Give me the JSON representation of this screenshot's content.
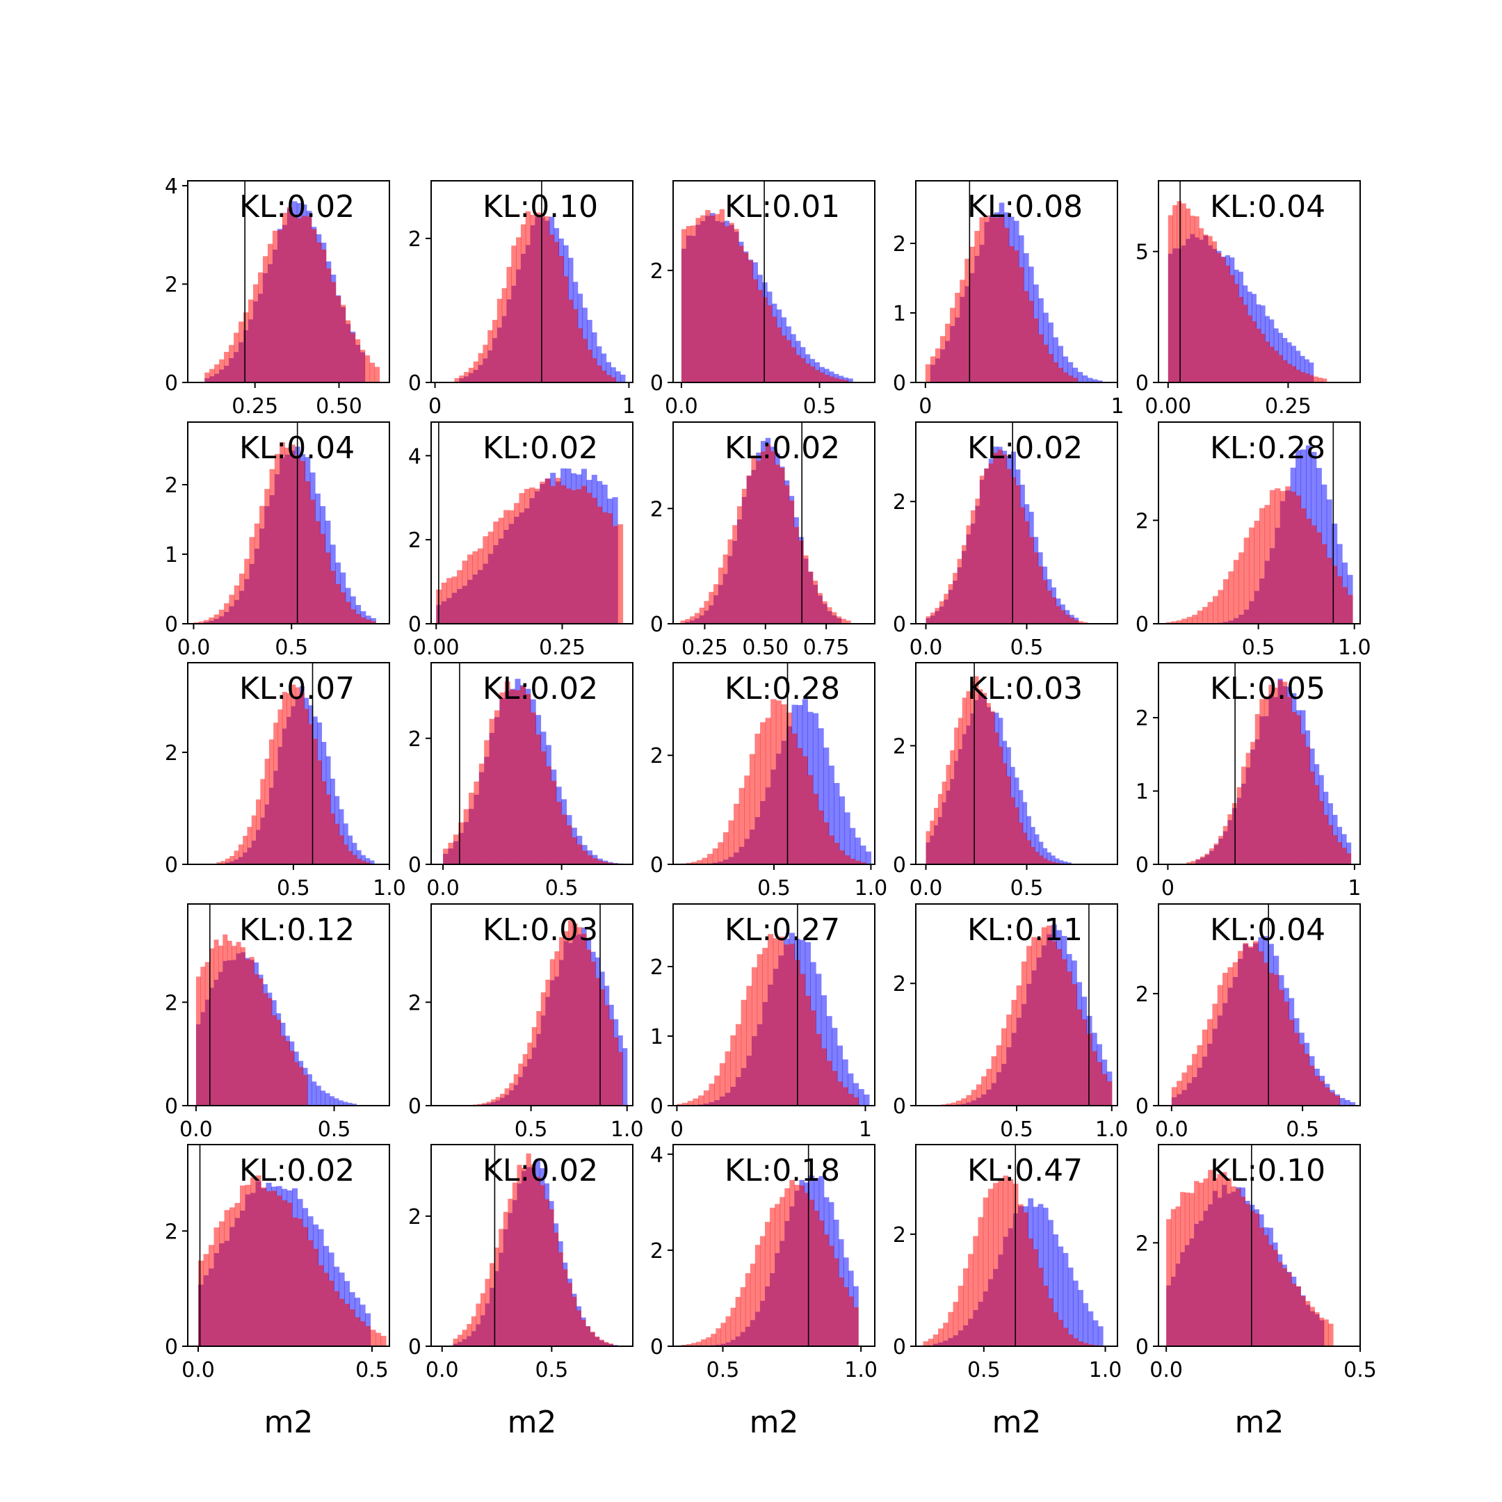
{
  "colors": {
    "blue": "#0000ff",
    "red": "#ff0000",
    "mix": "#c23b76",
    "frame": "#000000"
  },
  "chart_data": {
    "type": "histogram-grid",
    "rows": 5,
    "cols": 5,
    "xlabel": "m2",
    "grid": false,
    "panels": [
      {
        "kl": "KL:0.02",
        "xlim": [
          0.05,
          0.65
        ],
        "ylim": [
          0,
          4.1
        ],
        "xticks": [
          0.25,
          0.5
        ],
        "xticklabels": [
          "0.25",
          "0.50"
        ],
        "yticks": [
          0,
          2,
          4
        ],
        "yticklabels": [
          "0",
          "2",
          "4"
        ],
        "vline": 0.22,
        "red": {
          "mu": 0.37,
          "sd": 0.11,
          "peak": 3.5,
          "lo": 0.1,
          "hi": 0.62
        },
        "blue": {
          "mu": 0.38,
          "sd": 0.1,
          "peak": 3.6,
          "lo": 0.1,
          "hi": 0.58
        }
      },
      {
        "kl": "KL:0.10",
        "xlim": [
          -0.02,
          1.02
        ],
        "ylim": [
          0,
          2.8
        ],
        "xticks": [
          0,
          1
        ],
        "xticklabels": [
          "0",
          "1"
        ],
        "yticks": [
          0,
          2
        ],
        "yticklabels": [
          "0",
          "2"
        ],
        "vline": 0.55,
        "red": {
          "mu": 0.52,
          "sd": 0.15,
          "peak": 2.45,
          "lo": 0.1,
          "hi": 0.92
        },
        "blue": {
          "mu": 0.57,
          "sd": 0.16,
          "peak": 2.3,
          "lo": 0.12,
          "hi": 0.98
        }
      },
      {
        "kl": "KL:0.01",
        "xlim": [
          -0.03,
          0.7
        ],
        "ylim": [
          0,
          3.6
        ],
        "xticks": [
          0,
          0.5
        ],
        "xticklabels": [
          "0.0",
          "0.5"
        ],
        "yticks": [
          0,
          2
        ],
        "yticklabels": [
          "0",
          "2"
        ],
        "vline": 0.3,
        "red": {
          "mu": 0.1,
          "sd": 0.17,
          "peak": 3.1,
          "lo": 0.0,
          "hi": 0.6
        },
        "blue": {
          "mu": 0.12,
          "sd": 0.18,
          "peak": 2.95,
          "lo": 0.0,
          "hi": 0.62
        }
      },
      {
        "kl": "KL:0.08",
        "xlim": [
          -0.05,
          1.0
        ],
        "ylim": [
          0,
          2.9
        ],
        "xticks": [
          0,
          1
        ],
        "xticklabels": [
          "0",
          "1"
        ],
        "yticks": [
          0,
          1,
          2
        ],
        "yticklabels": [
          "0",
          "1",
          "2"
        ],
        "vline": 0.23,
        "red": {
          "mu": 0.35,
          "sd": 0.16,
          "peak": 2.45,
          "lo": 0.0,
          "hi": 0.8
        },
        "blue": {
          "mu": 0.4,
          "sd": 0.17,
          "peak": 2.5,
          "lo": 0.02,
          "hi": 0.92
        }
      },
      {
        "kl": "KL:0.04",
        "xlim": [
          -0.02,
          0.4
        ],
        "ylim": [
          0,
          7.7
        ],
        "xticks": [
          0,
          0.25
        ],
        "xticklabels": [
          "0.00",
          "0.25"
        ],
        "yticks": [
          0,
          5
        ],
        "yticklabels": [
          "0",
          "5"
        ],
        "vline": 0.025,
        "red": {
          "mu": 0.02,
          "sd": 0.11,
          "peak": 6.7,
          "lo": 0.0,
          "hi": 0.33
        },
        "blue": {
          "mu": 0.06,
          "sd": 0.12,
          "peak": 5.5,
          "lo": 0.0,
          "hi": 0.3
        }
      },
      {
        "kl": "KL:0.04",
        "xlim": [
          -0.03,
          1.0
        ],
        "ylim": [
          0,
          2.9
        ],
        "xticks": [
          0,
          0.5
        ],
        "xticklabels": [
          "0.0",
          "0.5"
        ],
        "yticks": [
          0,
          1,
          2
        ],
        "yticklabels": [
          "0",
          "1",
          "2"
        ],
        "vline": 0.53,
        "red": {
          "mu": 0.48,
          "sd": 0.15,
          "peak": 2.55,
          "lo": 0.0,
          "hi": 0.93
        },
        "blue": {
          "mu": 0.52,
          "sd": 0.15,
          "peak": 2.6,
          "lo": 0.05,
          "hi": 0.93
        }
      },
      {
        "kl": "KL:0.02",
        "xlim": [
          -0.01,
          0.39
        ],
        "ylim": [
          0,
          4.8
        ],
        "xticks": [
          0,
          0.25
        ],
        "xticklabels": [
          "0.00",
          "0.25"
        ],
        "yticks": [
          0,
          2,
          4
        ],
        "yticklabels": [
          "0",
          "2",
          "4"
        ],
        "vline": 0.005,
        "red": {
          "mu": 0.24,
          "sd": 0.14,
          "peak": 3.4,
          "lo": 0.0,
          "hi": 0.37
        },
        "blue": {
          "mu": 0.27,
          "sd": 0.13,
          "peak": 3.6,
          "lo": 0.0,
          "hi": 0.36
        }
      },
      {
        "kl": "KL:0.02",
        "xlim": [
          0.12,
          0.95
        ],
        "ylim": [
          0,
          3.5
        ],
        "xticks": [
          0.25,
          0.5,
          0.75
        ],
        "xticklabels": [
          "0.25",
          "0.50",
          "0.75"
        ],
        "yticks": [
          0,
          2
        ],
        "yticklabels": [
          "0",
          "2"
        ],
        "vline": 0.65,
        "red": {
          "mu": 0.5,
          "sd": 0.12,
          "peak": 3.05,
          "lo": 0.15,
          "hi": 0.85
        },
        "blue": {
          "mu": 0.51,
          "sd": 0.11,
          "peak": 3.2,
          "lo": 0.17,
          "hi": 0.82
        }
      },
      {
        "kl": "KL:0.02",
        "xlim": [
          -0.05,
          0.95
        ],
        "ylim": [
          0,
          3.3
        ],
        "xticks": [
          0,
          0.5
        ],
        "xticklabels": [
          "0.0",
          "0.5"
        ],
        "yticks": [
          0,
          2
        ],
        "yticklabels": [
          "0",
          "2"
        ],
        "vline": 0.43,
        "red": {
          "mu": 0.36,
          "sd": 0.14,
          "peak": 2.8,
          "lo": 0.0,
          "hi": 0.8
        },
        "blue": {
          "mu": 0.38,
          "sd": 0.14,
          "peak": 2.95,
          "lo": 0.0,
          "hi": 0.75
        }
      },
      {
        "kl": "KL:0.28",
        "xlim": [
          -0.02,
          1.03
        ],
        "ylim": [
          0,
          3.9
        ],
        "xticks": [
          0.5,
          1
        ],
        "xticklabels": [
          "0.5",
          "1.0"
        ],
        "yticks": [
          0,
          2
        ],
        "yticklabels": [
          "0",
          "2"
        ],
        "vline": 0.89,
        "red": {
          "mu": 0.63,
          "sd": 0.2,
          "peak": 2.6,
          "lo": 0.02,
          "hi": 0.98
        },
        "blue": {
          "mu": 0.75,
          "sd": 0.14,
          "peak": 3.4,
          "lo": 0.3,
          "hi": 0.99
        }
      },
      {
        "kl": "KL:0.07",
        "xlim": [
          -0.05,
          1.0
        ],
        "ylim": [
          0,
          3.6
        ],
        "xticks": [
          0.5,
          1
        ],
        "xticklabels": [
          "0.5",
          "1.0"
        ],
        "yticks": [
          0,
          2
        ],
        "yticklabels": [
          "0",
          "2"
        ],
        "vline": 0.6,
        "red": {
          "mu": 0.5,
          "sd": 0.13,
          "peak": 3.2,
          "lo": 0.1,
          "hi": 0.9
        },
        "blue": {
          "mu": 0.55,
          "sd": 0.13,
          "peak": 3.1,
          "lo": 0.14,
          "hi": 0.92
        }
      },
      {
        "kl": "KL:0.02",
        "xlim": [
          -0.05,
          0.8
        ],
        "ylim": [
          0,
          3.2
        ],
        "xticks": [
          0,
          0.5
        ],
        "xticklabels": [
          "0.0",
          "0.5"
        ],
        "yticks": [
          0,
          2
        ],
        "yticklabels": [
          "0",
          "2"
        ],
        "vline": 0.07,
        "red": {
          "mu": 0.3,
          "sd": 0.13,
          "peak": 2.9,
          "lo": 0.0,
          "hi": 0.75
        },
        "blue": {
          "mu": 0.32,
          "sd": 0.13,
          "peak": 2.95,
          "lo": 0.0,
          "hi": 0.78
        }
      },
      {
        "kl": "KL:0.28",
        "xlim": [
          -0.02,
          1.02
        ],
        "ylim": [
          0,
          3.7
        ],
        "xticks": [
          0.5,
          1
        ],
        "xticklabels": [
          "0.5",
          "1.0"
        ],
        "yticks": [
          0,
          2
        ],
        "yticklabels": [
          "0",
          "2"
        ],
        "vline": 0.57,
        "red": {
          "mu": 0.52,
          "sd": 0.15,
          "peak": 2.95,
          "lo": 0.02,
          "hi": 0.98
        },
        "blue": {
          "mu": 0.65,
          "sd": 0.15,
          "peak": 2.95,
          "lo": 0.05,
          "hi": 1.0
        }
      },
      {
        "kl": "KL:0.03",
        "xlim": [
          -0.05,
          0.95
        ],
        "ylim": [
          0,
          3.4
        ],
        "xticks": [
          0,
          0.5
        ],
        "xticklabels": [
          "0.0",
          "0.5"
        ],
        "yticks": [
          0,
          2
        ],
        "yticklabels": [
          "0",
          "2"
        ],
        "vline": 0.24,
        "red": {
          "mu": 0.25,
          "sd": 0.13,
          "peak": 3.05,
          "lo": 0.0,
          "hi": 0.7
        },
        "blue": {
          "mu": 0.29,
          "sd": 0.14,
          "peak": 2.8,
          "lo": 0.0,
          "hi": 0.72
        }
      },
      {
        "kl": "KL:0.05",
        "xlim": [
          -0.05,
          1.03
        ],
        "ylim": [
          0,
          2.75
        ],
        "xticks": [
          0,
          1
        ],
        "xticklabels": [
          "0",
          "1"
        ],
        "yticks": [
          0,
          1,
          2
        ],
        "yticklabels": [
          "0",
          "1",
          "2"
        ],
        "vline": 0.36,
        "red": {
          "mu": 0.59,
          "sd": 0.16,
          "peak": 2.5,
          "lo": 0.1,
          "hi": 0.97
        },
        "blue": {
          "mu": 0.62,
          "sd": 0.17,
          "peak": 2.45,
          "lo": 0.15,
          "hi": 0.98
        }
      },
      {
        "kl": "KL:0.12",
        "xlim": [
          -0.03,
          0.7
        ],
        "ylim": [
          0,
          3.9
        ],
        "xticks": [
          0,
          0.5
        ],
        "xticklabels": [
          "0.0",
          "0.5"
        ],
        "yticks": [
          0,
          2
        ],
        "yticklabels": [
          "0",
          "2"
        ],
        "vline": 0.05,
        "red": {
          "mu": 0.12,
          "sd": 0.15,
          "peak": 3.25,
          "lo": 0.0,
          "hi": 0.4
        },
        "blue": {
          "mu": 0.16,
          "sd": 0.14,
          "peak": 2.95,
          "lo": 0.0,
          "hi": 0.58
        }
      },
      {
        "kl": "KL:0.03",
        "xlim": [
          -0.02,
          1.03
        ],
        "ylim": [
          0,
          3.9
        ],
        "xticks": [
          0.5,
          1
        ],
        "xticklabels": [
          "0.5",
          "1.0"
        ],
        "yticks": [
          0,
          2
        ],
        "yticklabels": [
          "0",
          "2"
        ],
        "vline": 0.86,
        "red": {
          "mu": 0.72,
          "sd": 0.16,
          "peak": 3.45,
          "lo": 0.15,
          "hi": 0.98
        },
        "blue": {
          "mu": 0.75,
          "sd": 0.16,
          "peak": 3.4,
          "lo": 0.15,
          "hi": 1.0
        }
      },
      {
        "kl": "KL:0.27",
        "xlim": [
          -0.02,
          1.05
        ],
        "ylim": [
          0,
          2.9
        ],
        "xticks": [
          0,
          1
        ],
        "xticklabels": [
          "0",
          "1"
        ],
        "yticks": [
          0,
          1,
          2
        ],
        "yticklabels": [
          "0",
          "1",
          "2"
        ],
        "vline": 0.64,
        "red": {
          "mu": 0.53,
          "sd": 0.17,
          "peak": 2.5,
          "lo": 0.0,
          "hi": 0.97
        },
        "blue": {
          "mu": 0.63,
          "sd": 0.16,
          "peak": 2.45,
          "lo": 0.1,
          "hi": 1.02
        }
      },
      {
        "kl": "KL:0.11",
        "xlim": [
          -0.03,
          1.03
        ],
        "ylim": [
          0,
          3.3
        ],
        "xticks": [
          0.5,
          1
        ],
        "xticklabels": [
          "0.5",
          "1.0"
        ],
        "yticks": [
          0,
          2
        ],
        "yticklabels": [
          "0",
          "2"
        ],
        "vline": 0.88,
        "red": {
          "mu": 0.65,
          "sd": 0.17,
          "peak": 2.85,
          "lo": 0.05,
          "hi": 0.99
        },
        "blue": {
          "mu": 0.7,
          "sd": 0.16,
          "peak": 2.85,
          "lo": 0.1,
          "hi": 1.0
        }
      },
      {
        "kl": "KL:0.04",
        "xlim": [
          -0.05,
          0.72
        ],
        "ylim": [
          0,
          3.6
        ],
        "xticks": [
          0,
          0.5
        ],
        "xticklabels": [
          "0.0",
          "0.5"
        ],
        "yticks": [
          0,
          2
        ],
        "yticklabels": [
          "0",
          "2"
        ],
        "vline": 0.37,
        "red": {
          "mu": 0.3,
          "sd": 0.14,
          "peak": 2.9,
          "lo": 0.0,
          "hi": 0.65
        },
        "blue": {
          "mu": 0.33,
          "sd": 0.13,
          "peak": 3.0,
          "lo": 0.0,
          "hi": 0.7
        }
      },
      {
        "kl": "KL:0.02",
        "xlim": [
          -0.03,
          0.55
        ],
        "ylim": [
          0,
          3.5
        ],
        "xticks": [
          0,
          0.5
        ],
        "xticklabels": [
          "0.0",
          "0.5"
        ],
        "yticks": [
          0,
          2
        ],
        "yticklabels": [
          "0",
          "2"
        ],
        "vline": 0.005,
        "red": {
          "mu": 0.18,
          "sd": 0.15,
          "peak": 2.85,
          "lo": 0.0,
          "hi": 0.54
        },
        "blue": {
          "mu": 0.22,
          "sd": 0.15,
          "peak": 2.9,
          "lo": 0.0,
          "hi": 0.5
        }
      },
      {
        "kl": "KL:0.02",
        "xlim": [
          -0.05,
          0.87
        ],
        "ylim": [
          0,
          3.1
        ],
        "xticks": [
          0,
          0.5
        ],
        "xticklabels": [
          "0.0",
          "0.5"
        ],
        "yticks": [
          0,
          2
        ],
        "yticklabels": [
          "0",
          "2"
        ],
        "vline": 0.24,
        "red": {
          "mu": 0.39,
          "sd": 0.13,
          "peak": 2.85,
          "lo": 0.05,
          "hi": 0.78
        },
        "blue": {
          "mu": 0.41,
          "sd": 0.12,
          "peak": 2.85,
          "lo": 0.05,
          "hi": 0.8
        }
      },
      {
        "kl": "KL:0.18",
        "xlim": [
          0.32,
          1.05
        ],
        "ylim": [
          0,
          4.2
        ],
        "xticks": [
          0.5,
          1
        ],
        "xticklabels": [
          "0.5",
          "1.0"
        ],
        "yticks": [
          0,
          2,
          4
        ],
        "yticklabels": [
          "0",
          "2",
          "4"
        ],
        "vline": 0.81,
        "red": {
          "mu": 0.76,
          "sd": 0.13,
          "peak": 3.45,
          "lo": 0.35,
          "hi": 0.99
        },
        "blue": {
          "mu": 0.82,
          "sd": 0.11,
          "peak": 3.6,
          "lo": 0.4,
          "hi": 0.99
        }
      },
      {
        "kl": "KL:0.47",
        "xlim": [
          0.22,
          1.05
        ],
        "ylim": [
          0,
          3.6
        ],
        "xticks": [
          0.5,
          1
        ],
        "xticklabels": [
          "0.5",
          "1.0"
        ],
        "yticks": [
          0,
          2
        ],
        "yticklabels": [
          "0",
          "2"
        ],
        "vline": 0.63,
        "red": {
          "mu": 0.58,
          "sd": 0.12,
          "peak": 3.1,
          "lo": 0.25,
          "hi": 0.98
        },
        "blue": {
          "mu": 0.7,
          "sd": 0.14,
          "peak": 2.6,
          "lo": 0.3,
          "hi": 0.99
        }
      },
      {
        "kl": "KL:0.10",
        "xlim": [
          -0.02,
          0.5
        ],
        "ylim": [
          0,
          3.9
        ],
        "xticks": [
          0,
          0.5
        ],
        "xticklabels": [
          "0.0",
          "0.5"
        ],
        "yticks": [
          0,
          2
        ],
        "yticklabels": [
          "0",
          "2"
        ],
        "vline": 0.22,
        "red": {
          "mu": 0.12,
          "sd": 0.15,
          "peak": 3.3,
          "lo": 0.0,
          "hi": 0.43
        },
        "blue": {
          "mu": 0.17,
          "sd": 0.12,
          "peak": 3.1,
          "lo": 0.0,
          "hi": 0.41
        }
      }
    ]
  }
}
